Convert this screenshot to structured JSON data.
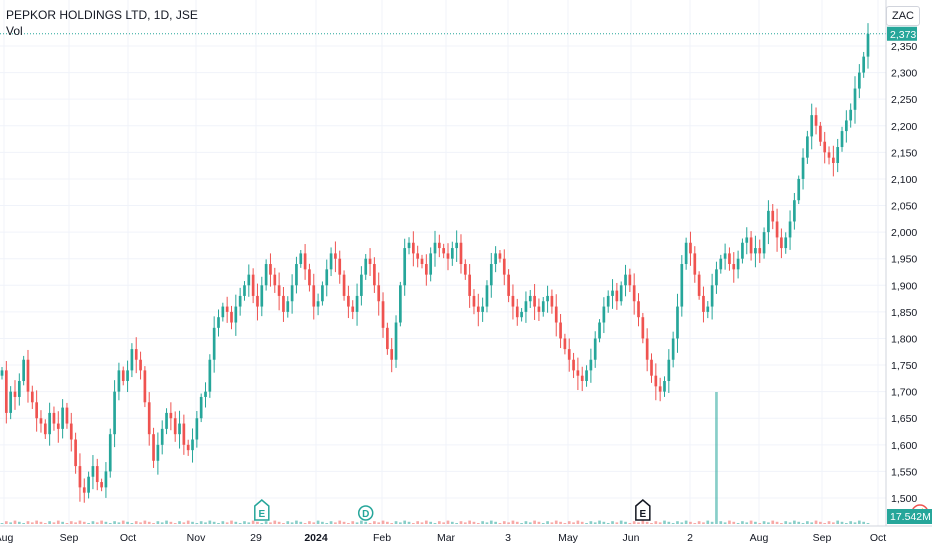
{
  "header": {
    "symbol": "PEPKOR HOLDINGS LTD, 1D, JSE",
    "volume_label": "Vol",
    "currency": "ZAC"
  },
  "chart_data": {
    "type": "candlestick",
    "ylim": [
      1480,
      2390
    ],
    "y_ticks": [
      1500,
      1550,
      1600,
      1650,
      1700,
      1750,
      1800,
      1850,
      1900,
      1950,
      2000,
      2050,
      2100,
      2150,
      2200,
      2250,
      2300,
      2350
    ],
    "y_tick_labels": [
      "1,500",
      "1,550",
      "1,600",
      "1,650",
      "1,700",
      "1,750",
      "1,800",
      "1,850",
      "1,900",
      "1,950",
      "2,000",
      "2,050",
      "2,100",
      "2,150",
      "2,200",
      "2,250",
      "2,300",
      "2,350"
    ],
    "x_labels": [
      "Aug",
      "Sep",
      "Oct",
      "Nov",
      "29",
      "2024",
      "Feb",
      "Mar",
      "3",
      "May",
      "Jun",
      "2",
      "Aug",
      "Sep",
      "Oct"
    ],
    "x_label_bold": [
      false,
      false,
      false,
      false,
      false,
      true,
      false,
      false,
      false,
      false,
      false,
      false,
      false,
      false,
      false
    ],
    "last_price": 2373,
    "last_price_label": "2,373",
    "last_volume_label": "17.542M",
    "closes": [
      1740,
      1660,
      1700,
      1690,
      1720,
      1760,
      1700,
      1680,
      1650,
      1640,
      1620,
      1660,
      1640,
      1630,
      1670,
      1640,
      1610,
      1560,
      1520,
      1510,
      1540,
      1560,
      1530,
      1520,
      1550,
      1620,
      1700,
      1740,
      1720,
      1740,
      1780,
      1760,
      1740,
      1680,
      1620,
      1570,
      1600,
      1630,
      1660,
      1650,
      1620,
      1640,
      1600,
      1590,
      1610,
      1650,
      1690,
      1700,
      1760,
      1820,
      1840,
      1860,
      1850,
      1830,
      1860,
      1880,
      1900,
      1920,
      1880,
      1860,
      1900,
      1940,
      1920,
      1900,
      1880,
      1850,
      1870,
      1900,
      1940,
      1960,
      1930,
      1900,
      1860,
      1870,
      1900,
      1930,
      1960,
      1950,
      1920,
      1880,
      1860,
      1850,
      1880,
      1920,
      1950,
      1940,
      1900,
      1870,
      1820,
      1780,
      1760,
      1830,
      1900,
      1970,
      1980,
      1960,
      1950,
      1940,
      1920,
      1960,
      1980,
      1970,
      1960,
      1950,
      1970,
      1980,
      1940,
      1920,
      1880,
      1860,
      1850,
      1860,
      1900,
      1940,
      1960,
      1950,
      1920,
      1880,
      1860,
      1840,
      1850,
      1870,
      1880,
      1860,
      1850,
      1870,
      1880,
      1860,
      1830,
      1800,
      1780,
      1760,
      1740,
      1730,
      1720,
      1740,
      1760,
      1800,
      1830,
      1860,
      1880,
      1890,
      1870,
      1900,
      1920,
      1900,
      1870,
      1840,
      1800,
      1760,
      1730,
      1710,
      1700,
      1720,
      1760,
      1800,
      1860,
      1940,
      1980,
      1960,
      1920,
      1880,
      1850,
      1860,
      1900,
      1930,
      1950,
      1960,
      1940,
      1930,
      1950,
      1980,
      1990,
      1960,
      1970,
      1960,
      2000,
      2040,
      2020,
      1990,
      1970,
      1990,
      2020,
      2060,
      2100,
      2140,
      2180,
      2220,
      2200,
      2170,
      2150,
      2140,
      2130,
      2160,
      2190,
      2210,
      2230,
      2270,
      2300,
      2330,
      2373
    ],
    "volume": {
      "name": "Vol",
      "spike_index": 165,
      "spike_label": ""
    },
    "events": [
      {
        "label": "E",
        "index": 60
      },
      {
        "label": "D",
        "index": 84
      },
      {
        "label": "E",
        "index": 148
      },
      {
        "label": "⚡",
        "index": 212
      }
    ]
  }
}
